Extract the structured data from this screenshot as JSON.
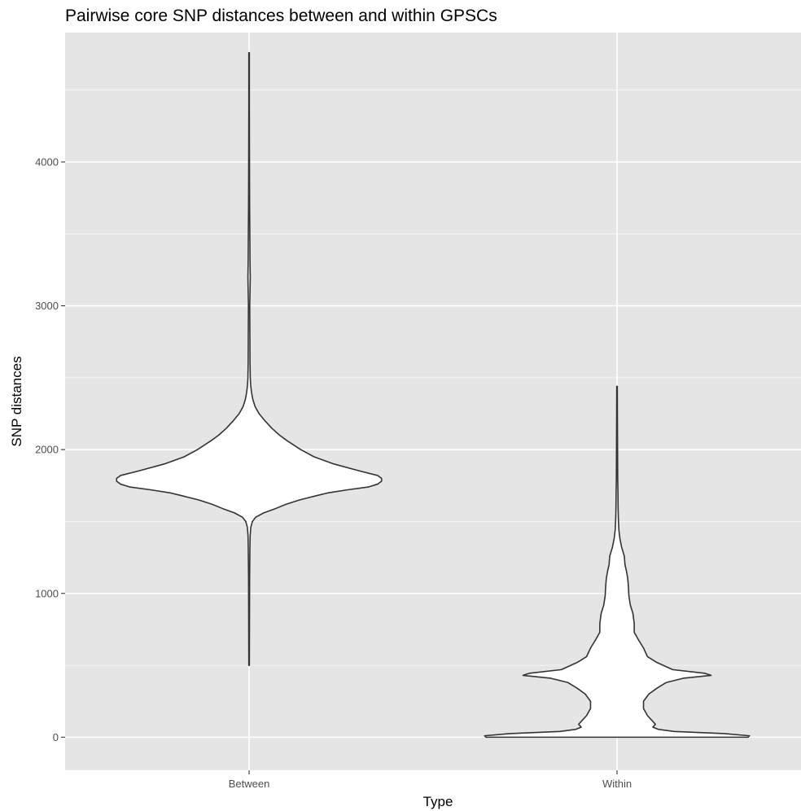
{
  "chart_data": {
    "type": "violin",
    "title": "Pairwise core SNP distances between and within GPSCs",
    "xlabel": "Type",
    "ylabel": "SNP distances",
    "categories": [
      "Between",
      "Within"
    ],
    "ylim": [
      -230,
      4900
    ],
    "yticks": [
      0,
      1000,
      2000,
      3000,
      4000
    ],
    "ytick_labels": [
      "0",
      "1000",
      "2000",
      "3000",
      "4000"
    ],
    "grid": true,
    "panel_background": "#e5e5e5",
    "grid_color": "#ffffff",
    "violin_fill": "#ffffff",
    "violin_stroke": "#333333",
    "density_note_units": "relative half-width (0-1)",
    "series": [
      {
        "category": "Between",
        "min": 500,
        "max": 4760,
        "profile": [
          [
            500,
            0.002
          ],
          [
            800,
            0.003
          ],
          [
            1100,
            0.004
          ],
          [
            1300,
            0.006
          ],
          [
            1400,
            0.008
          ],
          [
            1460,
            0.013
          ],
          [
            1500,
            0.025
          ],
          [
            1530,
            0.05
          ],
          [
            1560,
            0.11
          ],
          [
            1590,
            0.2
          ],
          [
            1620,
            0.28
          ],
          [
            1650,
            0.38
          ],
          [
            1680,
            0.51
          ],
          [
            1700,
            0.6
          ],
          [
            1720,
            0.74
          ],
          [
            1740,
            0.9
          ],
          [
            1760,
            0.97
          ],
          [
            1780,
            1.0
          ],
          [
            1800,
            1.0
          ],
          [
            1820,
            0.97
          ],
          [
            1850,
            0.84
          ],
          [
            1900,
            0.64
          ],
          [
            1950,
            0.49
          ],
          [
            2000,
            0.39
          ],
          [
            2060,
            0.29
          ],
          [
            2100,
            0.23
          ],
          [
            2150,
            0.17
          ],
          [
            2200,
            0.12
          ],
          [
            2250,
            0.075
          ],
          [
            2300,
            0.045
          ],
          [
            2350,
            0.028
          ],
          [
            2400,
            0.018
          ],
          [
            2450,
            0.012
          ],
          [
            2500,
            0.009
          ],
          [
            2600,
            0.007
          ],
          [
            2800,
            0.006
          ],
          [
            3000,
            0.005
          ],
          [
            3200,
            0.009
          ],
          [
            3300,
            0.007
          ],
          [
            3450,
            0.006
          ],
          [
            3700,
            0.004
          ],
          [
            4000,
            0.003
          ],
          [
            4400,
            0.002
          ],
          [
            4760,
            0.002
          ]
        ]
      },
      {
        "category": "Within",
        "min": 0,
        "max": 2440,
        "profile": [
          [
            0,
            0.99
          ],
          [
            10,
            1.0
          ],
          [
            25,
            0.81
          ],
          [
            40,
            0.43
          ],
          [
            55,
            0.31
          ],
          [
            70,
            0.27
          ],
          [
            90,
            0.29
          ],
          [
            110,
            0.27
          ],
          [
            150,
            0.23
          ],
          [
            200,
            0.2
          ],
          [
            250,
            0.2
          ],
          [
            300,
            0.24
          ],
          [
            340,
            0.3
          ],
          [
            380,
            0.37
          ],
          [
            410,
            0.5
          ],
          [
            430,
            0.71
          ],
          [
            445,
            0.66
          ],
          [
            470,
            0.42
          ],
          [
            520,
            0.3
          ],
          [
            560,
            0.23
          ],
          [
            620,
            0.2
          ],
          [
            680,
            0.16
          ],
          [
            730,
            0.13
          ],
          [
            790,
            0.13
          ],
          [
            860,
            0.12
          ],
          [
            920,
            0.1
          ],
          [
            980,
            0.09
          ],
          [
            1060,
            0.085
          ],
          [
            1110,
            0.08
          ],
          [
            1160,
            0.07
          ],
          [
            1200,
            0.06
          ],
          [
            1260,
            0.055
          ],
          [
            1320,
            0.035
          ],
          [
            1380,
            0.022
          ],
          [
            1440,
            0.014
          ],
          [
            1520,
            0.01
          ],
          [
            1600,
            0.008
          ],
          [
            1700,
            0.007
          ],
          [
            1800,
            0.005
          ],
          [
            2000,
            0.004
          ],
          [
            2200,
            0.003
          ],
          [
            2440,
            0.002
          ]
        ]
      }
    ]
  }
}
